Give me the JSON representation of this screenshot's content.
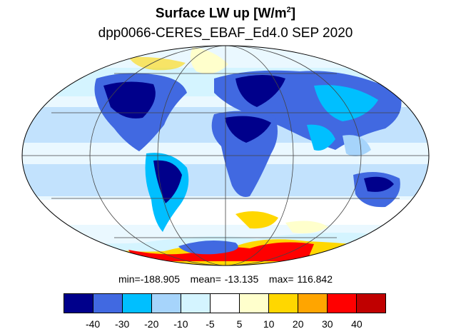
{
  "title": {
    "main": "Surface LW up [W/m",
    "main_sup": "2",
    "main_end": "]"
  },
  "subtitle": "dpp0066-CERES_EBAF_Ed4.0  SEP 2020",
  "stats": {
    "min_label": "min=-188.905",
    "mean_label": "mean= -13.135",
    "max_label": "max= 116.842"
  },
  "legend": {
    "colors": [
      "#00008b",
      "#4169e1",
      "#00bfff",
      "#a6d4fb",
      "#d4f4ff",
      "#ffffff",
      "#ffffcc",
      "#ffd700",
      "#ffa500",
      "#ff0000",
      "#c00000"
    ],
    "ticks": [
      "-40",
      "-30",
      "-20",
      "-10",
      "-5",
      "5",
      "10",
      "20",
      "30",
      "40"
    ]
  },
  "map": {
    "projection": "Mollweide",
    "background_color": "#ffffff",
    "grid": true
  }
}
